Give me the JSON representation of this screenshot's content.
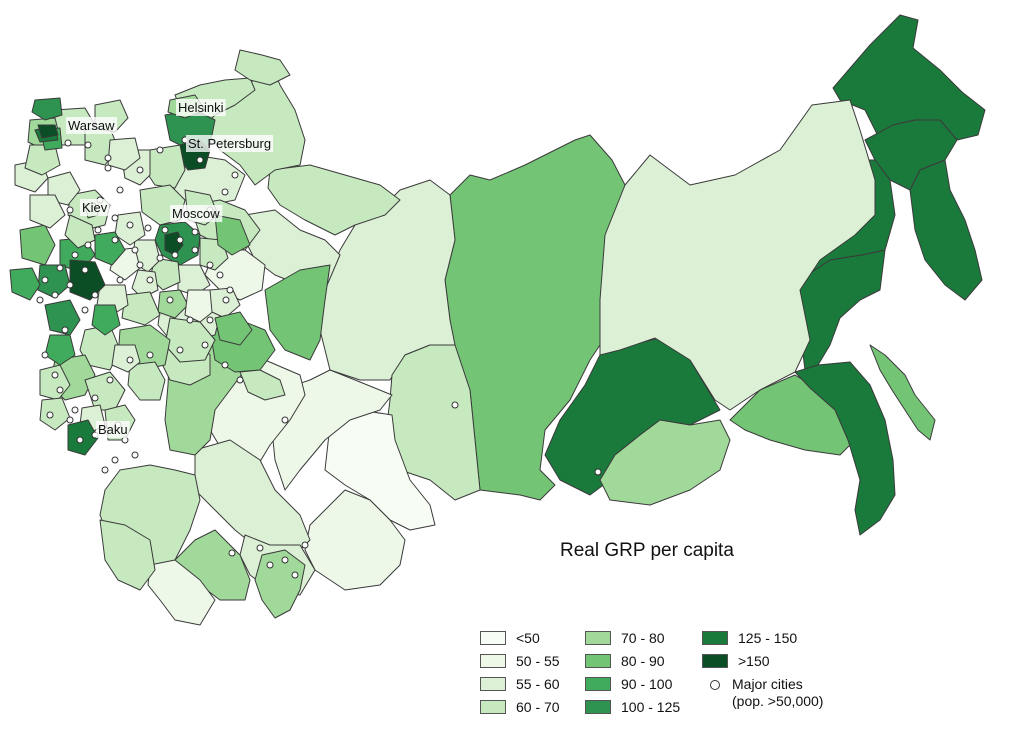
{
  "map": {
    "title": "Real GRP per capita",
    "city_labels": [
      "Helsinki",
      "Warsaw",
      "St. Petersburg",
      "Kiev",
      "Moscow",
      "Baku"
    ],
    "colors": {
      "lt50": "#f7fcf5",
      "50-55": "#edf8e9",
      "55-60": "#dcf0d6",
      "60-70": "#c7e9c0",
      "70-80": "#a1d99b",
      "80-90": "#74c476",
      "90-100": "#41ab5d",
      "100-125": "#2e9350",
      "125-150": "#1a7a3c",
      "gt150": "#0b4d25",
      "border": "#3a3a3a"
    }
  },
  "legend": {
    "items": [
      "<50",
      "50 - 55",
      "55 - 60",
      "60 - 70",
      "70 - 80",
      "80 - 90",
      "90 - 100",
      "100 - 125",
      "125 - 150",
      ">150"
    ],
    "cities_label_line1": "Major cities",
    "cities_label_line2": "(pop. >50,000)"
  }
}
